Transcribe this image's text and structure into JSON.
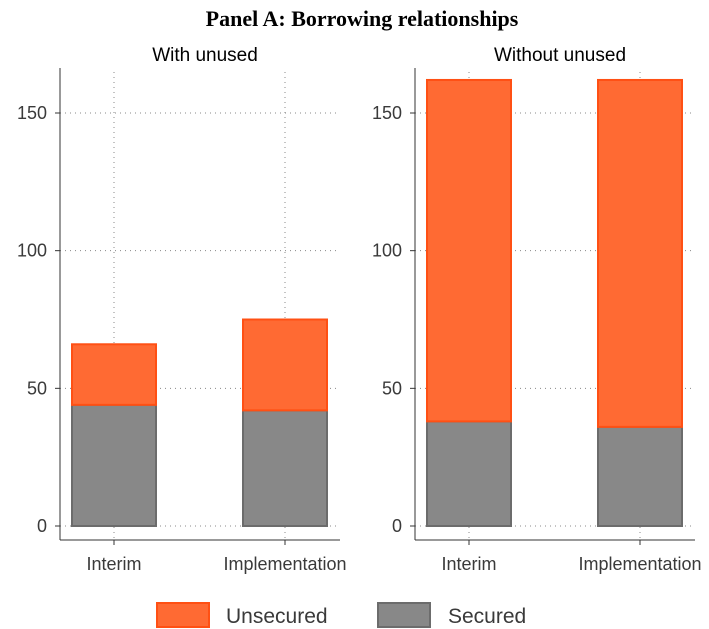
{
  "title": "Panel A: Borrowing relationships",
  "colors": {
    "Unsecured": "#ff6a33",
    "Unsecured_edge": "#ff5014",
    "Secured": "#888888",
    "Secured_edge": "#6c6c6c"
  },
  "legend": [
    {
      "label": "Unsecured",
      "color": "#ff6a33"
    },
    {
      "label": "Secured",
      "color": "#888888"
    }
  ],
  "chart_data": [
    {
      "type": "bar",
      "stacked": true,
      "title": "With unused",
      "categories": [
        "Interim",
        "Implementation"
      ],
      "series": [
        {
          "name": "Secured",
          "values": [
            44,
            42
          ]
        },
        {
          "name": "Unsecured",
          "values": [
            22,
            33
          ]
        }
      ],
      "ylim": [
        0,
        165
      ],
      "yticks": [
        0,
        50,
        100,
        150
      ],
      "grid": true,
      "legend_position": "bottom"
    },
    {
      "type": "bar",
      "stacked": true,
      "title": "Without unused",
      "categories": [
        "Interim",
        "Implementation"
      ],
      "series": [
        {
          "name": "Secured",
          "values": [
            38,
            36
          ]
        },
        {
          "name": "Unsecured",
          "values": [
            124,
            126
          ]
        }
      ],
      "ylim": [
        0,
        165
      ],
      "yticks": [
        0,
        50,
        100,
        150
      ],
      "grid": true,
      "legend_position": "bottom"
    }
  ]
}
